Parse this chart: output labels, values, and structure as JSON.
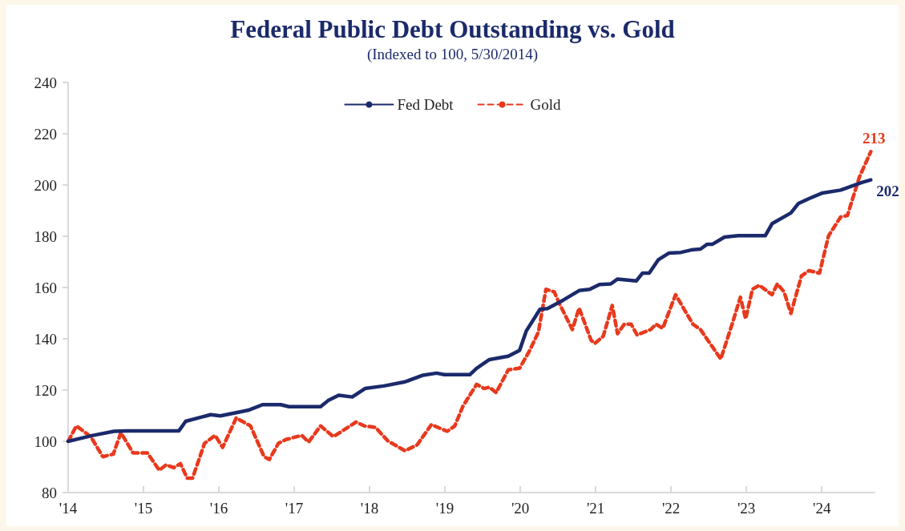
{
  "chart_data": {
    "type": "line",
    "title": "Federal Public Debt Outstanding vs. Gold",
    "subtitle": "(Indexed to 100, 5/30/2014)",
    "xlim": [
      2014,
      2024.7
    ],
    "xticks": [
      {
        "value": 2014,
        "label": "'14"
      },
      {
        "value": 2015,
        "label": "'15"
      },
      {
        "value": 2016,
        "label": "'16"
      },
      {
        "value": 2017,
        "label": "'17"
      },
      {
        "value": 2018,
        "label": "'18"
      },
      {
        "value": 2019,
        "label": "'19"
      },
      {
        "value": 2020,
        "label": "'20"
      },
      {
        "value": 2021,
        "label": "'21"
      },
      {
        "value": 2022,
        "label": "'22"
      },
      {
        "value": 2023,
        "label": "'23"
      },
      {
        "value": 2024,
        "label": "'24"
      }
    ],
    "ylim": [
      80,
      240
    ],
    "yticks": [
      80,
      100,
      120,
      140,
      160,
      180,
      200,
      220,
      240
    ],
    "grid": false,
    "legend": "top",
    "marker": "none",
    "series": [
      {
        "name": "Fed Debt",
        "color": "#1b2a6b",
        "line_style": "solid",
        "x": [
          2014,
          2014.33,
          2014.61,
          2014.79,
          2015.47,
          2015.56,
          2015.89,
          2016.02,
          2016.4,
          2016.58,
          2016.82,
          2016.93,
          2017.35,
          2017.45,
          2017.59,
          2017.77,
          2017.94,
          2018.19,
          2018.47,
          2018.71,
          2018.89,
          2018.99,
          2019.33,
          2019.42,
          2019.59,
          2019.84,
          2019.99,
          2020.08,
          2020.26,
          2020.36,
          2020.57,
          2020.78,
          2020.92,
          2021.05,
          2021.2,
          2021.29,
          2021.54,
          2021.62,
          2021.71,
          2021.83,
          2021.97,
          2022.13,
          2022.29,
          2022.39,
          2022.48,
          2022.55,
          2022.71,
          2022.89,
          2023.25,
          2023.34,
          2023.59,
          2023.69,
          2023.83,
          2024.01,
          2024.25,
          2024.39,
          2024.53,
          2024.65
        ],
        "values": [
          100,
          102.3,
          103.9,
          104.1,
          104.1,
          107.8,
          110.4,
          109.9,
          112.2,
          114.3,
          114.3,
          113.5,
          113.5,
          115.9,
          118,
          117.3,
          120.6,
          121.6,
          123.2,
          125.8,
          126.6,
          126,
          126,
          128.5,
          131.9,
          133.2,
          135.5,
          143.1,
          151.5,
          151.8,
          155.1,
          158.8,
          159.3,
          161.2,
          161.4,
          163.3,
          162.6,
          165.6,
          165.6,
          170.8,
          173.4,
          173.7,
          174.8,
          175,
          176.9,
          176.9,
          179.7,
          180.2,
          180.2,
          184.9,
          189.1,
          192.8,
          194.7,
          196.9,
          198,
          199.5,
          201,
          202
        ],
        "value_labels": [
          null,
          null,
          null,
          null,
          null,
          null,
          null,
          null,
          null,
          null,
          null,
          null,
          null,
          null,
          null,
          null,
          null,
          null,
          null,
          null,
          null,
          null,
          null,
          null,
          null,
          null,
          null,
          null,
          null,
          null,
          null,
          null,
          null,
          null,
          null,
          null,
          null,
          null,
          null,
          null,
          null,
          null,
          null,
          null,
          null,
          null,
          null,
          null,
          null,
          null,
          null,
          null,
          null,
          null,
          null,
          null,
          null,
          "202"
        ]
      },
      {
        "name": "Gold",
        "color": "#e8391d",
        "line_style": "dashed",
        "x": [
          2014,
          2014.11,
          2014.3,
          2014.46,
          2014.6,
          2014.7,
          2014.86,
          2015.05,
          2015.21,
          2015.3,
          2015.4,
          2015.49,
          2015.58,
          2015.65,
          2015.81,
          2015.95,
          2016.05,
          2016.23,
          2016.42,
          2016.6,
          2016.67,
          2016.79,
          2016.89,
          2017.1,
          2017.19,
          2017.35,
          2017.52,
          2017.82,
          2017.93,
          2018.08,
          2018.24,
          2018.47,
          2018.63,
          2018.82,
          2019.03,
          2019.13,
          2019.24,
          2019.42,
          2019.52,
          2019.59,
          2019.68,
          2019.84,
          2019.99,
          2020.12,
          2020.24,
          2020.34,
          2020.45,
          2020.52,
          2020.69,
          2020.78,
          2020.94,
          2020.99,
          2021.1,
          2021.22,
          2021.29,
          2021.38,
          2021.47,
          2021.55,
          2021.73,
          2021.8,
          2021.89,
          2022.06,
          2022.29,
          2022.39,
          2022.66,
          2022.81,
          2022.92,
          2022.99,
          2023.08,
          2023.17,
          2023.34,
          2023.41,
          2023.5,
          2023.59,
          2023.73,
          2023.83,
          2023.97,
          2024.09,
          2024.25,
          2024.34,
          2024.5,
          2024.65
        ],
        "values": [
          100,
          106,
          101.8,
          94,
          95,
          103.4,
          95.5,
          95.5,
          88.7,
          90.8,
          89.7,
          91.3,
          85.6,
          85.6,
          99.2,
          102.3,
          97.6,
          109.1,
          106,
          94,
          92.9,
          99.2,
          100.7,
          102.3,
          99.7,
          106,
          101.8,
          107.5,
          106,
          105.4,
          100.2,
          96.3,
          98.6,
          106.5,
          103.9,
          106,
          113.8,
          122.2,
          120.6,
          121.1,
          119,
          127.9,
          128.5,
          135.2,
          142.6,
          159.3,
          158.3,
          153.6,
          143.6,
          152,
          139.4,
          138.2,
          141,
          153,
          142,
          145.7,
          145.7,
          141.5,
          143.6,
          145.7,
          144.1,
          157.2,
          145.7,
          143.6,
          132.1,
          145.7,
          156.2,
          147.8,
          159.3,
          160.9,
          157.2,
          161.4,
          158.3,
          149.9,
          164.5,
          166.6,
          165.6,
          180.2,
          187.5,
          188.1,
          203.2,
          213
        ],
        "value_labels": [
          null,
          null,
          null,
          null,
          null,
          null,
          null,
          null,
          null,
          null,
          null,
          null,
          null,
          null,
          null,
          null,
          null,
          null,
          null,
          null,
          null,
          null,
          null,
          null,
          null,
          null,
          null,
          null,
          null,
          null,
          null,
          null,
          null,
          null,
          null,
          null,
          null,
          null,
          null,
          null,
          null,
          null,
          null,
          null,
          null,
          null,
          null,
          null,
          null,
          null,
          null,
          null,
          null,
          null,
          null,
          null,
          null,
          null,
          null,
          null,
          null,
          null,
          null,
          null,
          null,
          null,
          null,
          null,
          null,
          null,
          null,
          null,
          null,
          null,
          null,
          null,
          null,
          null,
          null,
          null,
          null,
          "213"
        ]
      }
    ]
  }
}
